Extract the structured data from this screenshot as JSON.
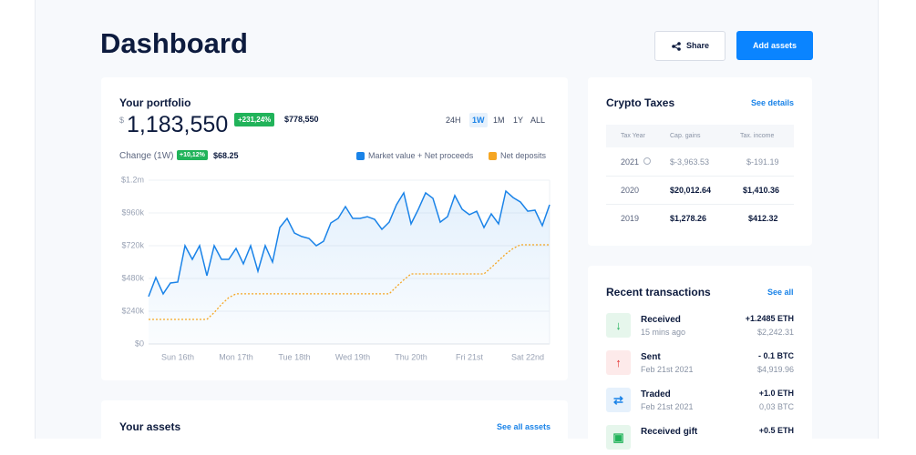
{
  "header": {
    "title": "Dashboard",
    "buttons": [
      "Share",
      "Add assets"
    ]
  },
  "portfolio": {
    "title": "Your portfolio",
    "currency": "$",
    "value": "1,183,550",
    "change_badge": "+231,24%",
    "base_value": "$778,550",
    "periods": [
      "24H",
      "1W",
      "1M",
      "1Y",
      "ALL"
    ],
    "active_period": "1W",
    "change_label": "Change (1W)",
    "change_period_badge": "+10,12%",
    "change_value": "$68.25",
    "chart": {
      "type": "line",
      "categories": [
        null,
        null,
        null,
        null,
        "Sun 16th",
        null,
        null,
        null,
        null,
        null,
        null,
        null,
        "Mon 17th",
        null,
        null,
        null,
        null,
        null,
        null,
        null,
        "Tue 18th",
        null,
        null,
        null,
        null,
        null,
        null,
        null,
        "Wed 19th",
        null,
        null,
        null,
        null,
        null,
        null,
        null,
        "Thu 20th",
        null,
        null,
        null,
        null,
        null,
        null,
        null,
        "Fri 21st",
        null,
        null,
        null,
        null,
        null,
        null,
        null,
        "Sat 22nd",
        null,
        null,
        null
      ],
      "series": [
        {
          "name": "Market value + Net proceeds",
          "color": "#1a83e8",
          "values": [
            347000,
            487000,
            367000,
            447000,
            453000,
            720000,
            620000,
            720000,
            500000,
            720000,
            620000,
            620000,
            700000,
            587000,
            720000,
            533000,
            720000,
            600000,
            853000,
            920000,
            813000,
            787000,
            773000,
            720000,
            753000,
            887000,
            920000,
            1007000,
            920000,
            920000,
            933000,
            913000,
            840000,
            893000,
            1020000,
            1107000,
            880000,
            987000,
            1107000,
            1067000,
            893000,
            933000,
            1087000,
            987000,
            947000,
            973000,
            853000,
            953000,
            880000,
            1120000,
            1073000,
            1040000,
            973000,
            980000,
            867000,
            1020000
          ]
        },
        {
          "name": "Net deposits",
          "color": "#f5a623",
          "values": [
            180000,
            180000,
            180000,
            180000,
            180000,
            180000,
            180000,
            180000,
            180000,
            230000,
            290000,
            340000,
            367000,
            367000,
            367000,
            367000,
            367000,
            367000,
            367000,
            367000,
            367000,
            367000,
            367000,
            367000,
            367000,
            367000,
            367000,
            367000,
            367000,
            367000,
            367000,
            367000,
            367000,
            367000,
            420000,
            470000,
            513000,
            513000,
            513000,
            513000,
            513000,
            513000,
            513000,
            513000,
            513000,
            513000,
            513000,
            560000,
            610000,
            660000,
            700000,
            727000,
            727000,
            727000,
            727000,
            727000
          ]
        }
      ],
      "ylim": [
        0,
        1200000
      ],
      "yticks": [
        {
          "value": 0,
          "label": "$0"
        },
        {
          "value": 240000,
          "label": "$240k"
        },
        {
          "value": 480000,
          "label": "$480k"
        },
        {
          "value": 720000,
          "label": "$720k"
        },
        {
          "value": 960000,
          "label": "$960k"
        },
        {
          "value": 1200000,
          "label": "$1.2m"
        }
      ],
      "grid": true
    }
  },
  "taxes": {
    "title": "Crypto Taxes",
    "link": "See details",
    "columns": [
      "Tax Year",
      "Cap. gains",
      "Tax. income"
    ],
    "rows": [
      [
        "2021",
        "$-3,963.53",
        "$-191.19"
      ],
      [
        "2020",
        "$20,012.64",
        "$1,410.36"
      ],
      [
        "2019",
        "$1,278.26",
        "$412.32"
      ]
    ]
  },
  "transactions": {
    "title": "Recent transactions",
    "link": "See all",
    "items": [
      {
        "type": "Received",
        "time": "15 mins ago",
        "amount": "+1.2485 ETH",
        "value": "$2,242.31"
      },
      {
        "type": "Sent",
        "time": "Feb 21st 2021",
        "amount": "- 0.1 BTC",
        "value": "$4,919.96"
      },
      {
        "type": "Traded",
        "time": "Feb 21st 2021",
        "amount": "+1.0 ETH",
        "value": "0,03 BTC"
      },
      {
        "type": "Received gift",
        "amount": "+0.5 ETH"
      }
    ]
  },
  "assets": {
    "title": "Your assets",
    "link": "See all assets"
  }
}
